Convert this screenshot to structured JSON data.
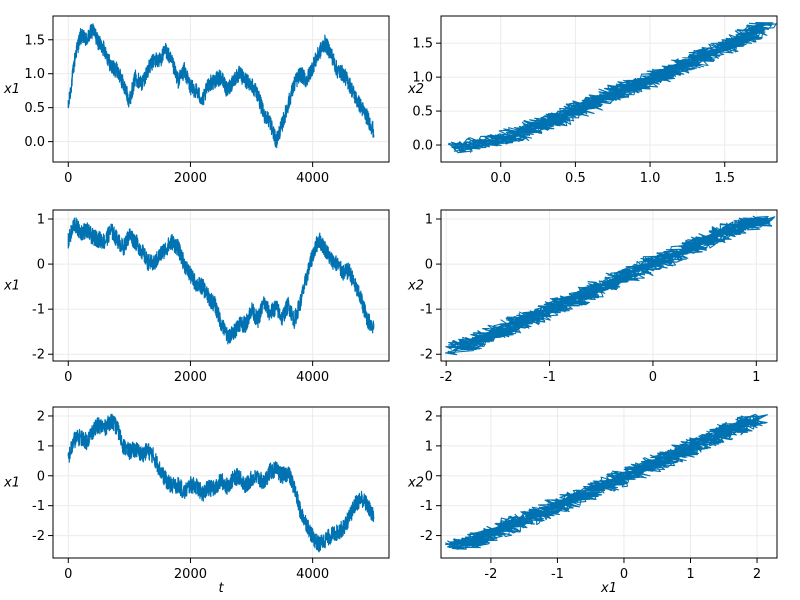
{
  "chart_data": [
    {
      "type": "line",
      "title": "",
      "xlabel": "",
      "ylabel": "x1",
      "xlim": [
        -250,
        5250
      ],
      "ylim": [
        -0.3,
        1.85
      ],
      "xticks": [
        0,
        2000,
        4000
      ],
      "yticks": [
        0.0,
        0.5,
        1.0,
        1.5
      ],
      "xtick_labels": [
        "0",
        "2000",
        "4000"
      ],
      "ytick_labels": [
        "0.0",
        "0.5",
        "1.0",
        "1.5"
      ],
      "grid": true,
      "color": "#0072b2",
      "series": [
        {
          "x": [
            0,
            120,
            200,
            300,
            400,
            500,
            600,
            700,
            800,
            900,
            1000,
            1100,
            1200,
            1300,
            1400,
            1500,
            1600,
            1700,
            1800,
            1900,
            2000,
            2100,
            2200,
            2300,
            2400,
            2500,
            2600,
            2700,
            2800,
            2900,
            3000,
            3100,
            3200,
            3300,
            3400,
            3500,
            3600,
            3700,
            3800,
            3900,
            4000,
            4100,
            4200,
            4300,
            4400,
            4500,
            4600,
            4700,
            4800,
            4900,
            5000
          ],
          "y": [
            0.5,
            1.3,
            1.55,
            1.5,
            1.65,
            1.45,
            1.35,
            1.1,
            1.05,
            0.85,
            0.6,
            0.95,
            0.85,
            1.05,
            1.2,
            1.2,
            1.35,
            1.15,
            0.9,
            1.05,
            0.8,
            0.75,
            0.6,
            0.85,
            0.9,
            0.95,
            0.75,
            0.9,
            1.0,
            0.9,
            0.85,
            0.7,
            0.4,
            0.3,
            0.0,
            0.25,
            0.55,
            0.85,
            1.0,
            0.9,
            1.1,
            1.3,
            1.45,
            1.3,
            1.05,
            1.0,
            0.85,
            0.65,
            0.5,
            0.35,
            0.15
          ]
        }
      ]
    },
    {
      "type": "scatter",
      "title": "",
      "xlabel": "",
      "ylabel": "x2",
      "xlim": [
        -0.4,
        1.85
      ],
      "ylim": [
        -0.25,
        1.9
      ],
      "xticks": [
        0.0,
        0.5,
        1.0,
        1.5
      ],
      "yticks": [
        0.0,
        0.5,
        1.0,
        1.5
      ],
      "xtick_labels": [
        "0.0",
        "0.5",
        "1.0",
        "1.5"
      ],
      "ytick_labels": [
        "0.0",
        "0.5",
        "1.0",
        "1.5"
      ],
      "grid": true,
      "color": "#0072b2",
      "series": [
        {
          "x": [
            -0.3,
            -0.1,
            0.05,
            0.15,
            0.25,
            0.35,
            0.45,
            0.55,
            0.65,
            0.75,
            0.85,
            0.95,
            1.05,
            1.15,
            1.25,
            1.35,
            1.45,
            1.55,
            1.65,
            1.75
          ],
          "y": [
            -0.05,
            0.05,
            0.1,
            0.2,
            0.3,
            0.35,
            0.45,
            0.55,
            0.65,
            0.75,
            0.85,
            0.9,
            1.0,
            1.1,
            1.2,
            1.3,
            1.4,
            1.5,
            1.6,
            1.75
          ]
        }
      ]
    },
    {
      "type": "line",
      "title": "",
      "xlabel": "",
      "ylabel": "x1",
      "xlim": [
        -250,
        5250
      ],
      "ylim": [
        -2.15,
        1.2
      ],
      "xticks": [
        0,
        2000,
        4000
      ],
      "yticks": [
        -2,
        -1,
        0,
        1
      ],
      "xtick_labels": [
        "0",
        "2000",
        "4000"
      ],
      "ytick_labels": [
        "-2",
        "-1",
        "0",
        "1"
      ],
      "grid": true,
      "color": "#0072b2",
      "series": [
        {
          "x": [
            0,
            100,
            200,
            300,
            400,
            500,
            600,
            700,
            800,
            900,
            1000,
            1100,
            1200,
            1300,
            1400,
            1500,
            1600,
            1700,
            1800,
            1900,
            2000,
            2100,
            2200,
            2300,
            2400,
            2500,
            2600,
            2700,
            2800,
            2900,
            3000,
            3100,
            3200,
            3300,
            3400,
            3500,
            3600,
            3700,
            3800,
            3900,
            4000,
            4100,
            4200,
            4300,
            4400,
            4500,
            4600,
            4700,
            4800,
            4900,
            5000
          ],
          "y": [
            0.5,
            0.9,
            0.7,
            0.75,
            0.6,
            0.55,
            0.5,
            0.75,
            0.55,
            0.35,
            0.65,
            0.5,
            0.3,
            0.05,
            0.0,
            0.2,
            0.35,
            0.5,
            0.35,
            0.0,
            -0.25,
            -0.45,
            -0.5,
            -0.75,
            -0.9,
            -1.3,
            -1.6,
            -1.55,
            -1.3,
            -1.35,
            -1.0,
            -1.25,
            -0.85,
            -1.1,
            -0.95,
            -1.2,
            -0.9,
            -1.25,
            -0.85,
            -0.3,
            0.2,
            0.55,
            0.35,
            0.1,
            0.0,
            -0.2,
            -0.15,
            -0.5,
            -0.8,
            -1.25,
            -1.4
          ]
        }
      ]
    },
    {
      "type": "scatter",
      "title": "",
      "xlabel": "",
      "ylabel": "x2",
      "xlim": [
        -2.05,
        1.2
      ],
      "ylim": [
        -2.15,
        1.2
      ],
      "xticks": [
        -2,
        -1,
        0,
        1
      ],
      "yticks": [
        -2,
        -1,
        0,
        1
      ],
      "xtick_labels": [
        "-2",
        "-1",
        "0",
        "1"
      ],
      "ytick_labels": [
        "-2",
        "-1",
        "0",
        "1"
      ],
      "grid": true,
      "color": "#0072b2",
      "series": [
        {
          "x": [
            -1.9,
            -1.7,
            -1.5,
            -1.3,
            -1.1,
            -0.9,
            -0.7,
            -0.5,
            -0.3,
            -0.1,
            0.1,
            0.3,
            0.5,
            0.7,
            0.9,
            1.05
          ],
          "y": [
            -1.9,
            -1.7,
            -1.5,
            -1.3,
            -1.1,
            -0.9,
            -0.7,
            -0.5,
            -0.3,
            -0.1,
            0.1,
            0.3,
            0.5,
            0.7,
            0.9,
            0.95
          ]
        }
      ]
    },
    {
      "type": "line",
      "title": "",
      "xlabel": "t",
      "ylabel": "x1",
      "xlim": [
        -250,
        5250
      ],
      "ylim": [
        -2.75,
        2.3
      ],
      "xticks": [
        0,
        2000,
        4000
      ],
      "yticks": [
        -2,
        -1,
        0,
        1,
        2
      ],
      "xtick_labels": [
        "0",
        "2000",
        "4000"
      ],
      "ytick_labels": [
        "-2",
        "-1",
        "0",
        "1",
        "2"
      ],
      "grid": true,
      "color": "#0072b2",
      "series": [
        {
          "x": [
            0,
            100,
            200,
            300,
            400,
            500,
            600,
            700,
            800,
            900,
            1000,
            1100,
            1200,
            1300,
            1400,
            1500,
            1600,
            1700,
            1800,
            1900,
            2000,
            2100,
            2200,
            2300,
            2400,
            2500,
            2600,
            2700,
            2800,
            2900,
            3000,
            3100,
            3200,
            3300,
            3400,
            3500,
            3600,
            3700,
            3800,
            3900,
            4000,
            4100,
            4200,
            4300,
            4400,
            4500,
            4600,
            4700,
            4800,
            4900,
            5000
          ],
          "y": [
            0.6,
            1.2,
            1.3,
            1.15,
            1.5,
            1.7,
            1.6,
            1.85,
            1.6,
            1.0,
            0.8,
            0.9,
            0.7,
            0.85,
            0.65,
            0.2,
            -0.15,
            -0.35,
            -0.3,
            -0.55,
            -0.3,
            -0.35,
            -0.6,
            -0.4,
            -0.45,
            -0.15,
            -0.35,
            -0.1,
            0.0,
            -0.35,
            -0.1,
            -0.05,
            -0.25,
            0.15,
            0.2,
            0.0,
            0.1,
            -0.4,
            -1.2,
            -1.6,
            -2.05,
            -2.3,
            -2.15,
            -2.0,
            -1.9,
            -1.75,
            -1.4,
            -0.95,
            -0.75,
            -1.0,
            -1.4
          ]
        }
      ]
    },
    {
      "type": "scatter",
      "title": "",
      "xlabel": "x1",
      "ylabel": "x2",
      "xlim": [
        -2.75,
        2.3
      ],
      "ylim": [
        -2.75,
        2.3
      ],
      "xticks": [
        -2,
        -1,
        0,
        1,
        2
      ],
      "yticks": [
        -2,
        -1,
        0,
        1,
        2
      ],
      "xtick_labels": [
        "-2",
        "-1",
        "0",
        "1",
        "2"
      ],
      "ytick_labels": [
        "-2",
        "-1",
        "0",
        "1",
        "2"
      ],
      "grid": true,
      "color": "#0072b2",
      "series": [
        {
          "x": [
            -2.5,
            -2.2,
            -1.9,
            -1.6,
            -1.3,
            -1.0,
            -0.7,
            -0.4,
            -0.1,
            0.2,
            0.5,
            0.8,
            1.1,
            1.4,
            1.7,
            2.0
          ],
          "y": [
            -2.35,
            -2.15,
            -1.85,
            -1.55,
            -1.3,
            -1.0,
            -0.7,
            -0.45,
            -0.15,
            0.15,
            0.45,
            0.75,
            1.05,
            1.35,
            1.65,
            1.9
          ]
        }
      ]
    }
  ]
}
